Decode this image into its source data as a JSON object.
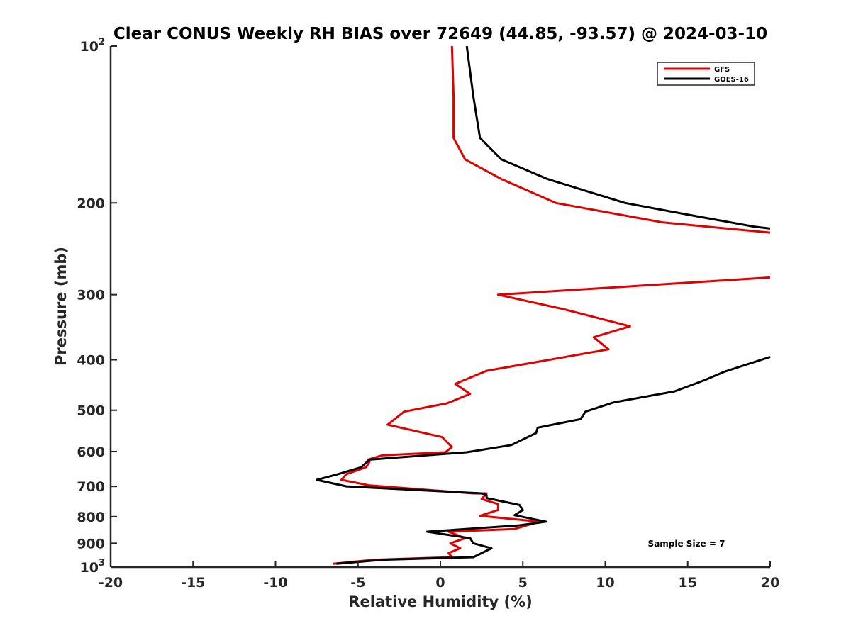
{
  "chart_data": {
    "type": "line",
    "title": "Clear CONUS Weekly RH BIAS over 72649 (44.85, -93.57) @ 2024-03-10",
    "xlabel": "Relative Humidity (%)",
    "ylabel": "Pressure (mb)",
    "xlim": [
      -20,
      20
    ],
    "ylim": [
      100,
      1000
    ],
    "y_scale": "log",
    "y_reversed": true,
    "x_ticks": [
      "-20",
      "-15",
      "-10",
      "-5",
      "0",
      "5",
      "10",
      "15",
      "20"
    ],
    "y_ticks": [
      {
        "value": 100,
        "base": "10",
        "exp": "2"
      },
      {
        "value": 200,
        "label": "200"
      },
      {
        "value": 300,
        "label": "300"
      },
      {
        "value": 400,
        "label": "400"
      },
      {
        "value": 500,
        "label": "500"
      },
      {
        "value": 600,
        "label": "600"
      },
      {
        "value": 700,
        "label": "700"
      },
      {
        "value": 800,
        "label": "800"
      },
      {
        "value": 900,
        "label": "900"
      },
      {
        "value": 1000,
        "base": "10",
        "exp": "3"
      }
    ],
    "grid": false,
    "legend_position": "top-right",
    "annotation": "Sample Size = 7",
    "series": [
      {
        "name": "GFS",
        "color": "#e00000",
        "points": [
          {
            "x": 0.7,
            "p": 100
          },
          {
            "x": 0.8,
            "p": 125
          },
          {
            "x": 0.8,
            "p": 150
          },
          {
            "x": 1.5,
            "p": 165
          },
          {
            "x": 3.7,
            "p": 180
          },
          {
            "x": 7.0,
            "p": 200
          },
          {
            "x": 13.5,
            "p": 218
          },
          {
            "x": 20.0,
            "p": 228
          },
          {
            "x": null,
            "p": 270
          },
          {
            "x": 20.0,
            "p": 278
          },
          {
            "x": 3.5,
            "p": 300
          },
          {
            "x": 7.5,
            "p": 320
          },
          {
            "x": 11.5,
            "p": 345
          },
          {
            "x": 9.3,
            "p": 362
          },
          {
            "x": 10.2,
            "p": 382
          },
          {
            "x": 2.8,
            "p": 420
          },
          {
            "x": 0.9,
            "p": 445
          },
          {
            "x": 1.8,
            "p": 465
          },
          {
            "x": 0.4,
            "p": 485
          },
          {
            "x": -2.2,
            "p": 503
          },
          {
            "x": -3.2,
            "p": 533
          },
          {
            "x": 0.1,
            "p": 563
          },
          {
            "x": 0.7,
            "p": 588
          },
          {
            "x": 0.3,
            "p": 602
          },
          {
            "x": -3.5,
            "p": 610
          },
          {
            "x": -4.4,
            "p": 622
          },
          {
            "x": -4.3,
            "p": 628
          },
          {
            "x": -4.5,
            "p": 643
          },
          {
            "x": -5.7,
            "p": 663
          },
          {
            "x": -6.0,
            "p": 680
          },
          {
            "x": -4.3,
            "p": 697
          },
          {
            "x": 2.0,
            "p": 722
          },
          {
            "x": 2.8,
            "p": 722
          },
          {
            "x": 2.5,
            "p": 740
          },
          {
            "x": 3.5,
            "p": 757
          },
          {
            "x": 3.5,
            "p": 777
          },
          {
            "x": 2.4,
            "p": 797
          },
          {
            "x": 6.0,
            "p": 818
          },
          {
            "x": 4.5,
            "p": 845
          },
          {
            "x": 0.5,
            "p": 855
          },
          {
            "x": 1.5,
            "p": 880
          },
          {
            "x": 0.6,
            "p": 900
          },
          {
            "x": 1.2,
            "p": 920
          },
          {
            "x": 0.5,
            "p": 940
          },
          {
            "x": 0.7,
            "p": 957
          },
          {
            "x": -4.0,
            "p": 968
          },
          {
            "x": -6.5,
            "p": 985
          }
        ]
      },
      {
        "name": "GOES-16",
        "color": "#000000",
        "points": [
          {
            "x": 1.6,
            "p": 100
          },
          {
            "x": 2.0,
            "p": 125
          },
          {
            "x": 2.4,
            "p": 150
          },
          {
            "x": 3.7,
            "p": 165
          },
          {
            "x": 6.5,
            "p": 180
          },
          {
            "x": 11.2,
            "p": 200
          },
          {
            "x": 15.5,
            "p": 212
          },
          {
            "x": 19.0,
            "p": 222
          },
          {
            "x": 20.0,
            "p": 224
          },
          {
            "x": null,
            "p": 390
          },
          {
            "x": 20.0,
            "p": 395
          },
          {
            "x": 17.2,
            "p": 422
          },
          {
            "x": 16.0,
            "p": 438
          },
          {
            "x": 14.2,
            "p": 460
          },
          {
            "x": 10.5,
            "p": 483
          },
          {
            "x": 8.8,
            "p": 503
          },
          {
            "x": 8.5,
            "p": 520
          },
          {
            "x": 5.9,
            "p": 540
          },
          {
            "x": 5.8,
            "p": 553
          },
          {
            "x": 4.3,
            "p": 583
          },
          {
            "x": 1.6,
            "p": 602
          },
          {
            "x": -4.3,
            "p": 622
          },
          {
            "x": -4.8,
            "p": 643
          },
          {
            "x": -6.2,
            "p": 663
          },
          {
            "x": -7.5,
            "p": 680
          },
          {
            "x": -5.7,
            "p": 700
          },
          {
            "x": 2.5,
            "p": 722
          },
          {
            "x": 2.8,
            "p": 727
          },
          {
            "x": 2.8,
            "p": 737
          },
          {
            "x": 4.8,
            "p": 760
          },
          {
            "x": 5.0,
            "p": 777
          },
          {
            "x": 4.5,
            "p": 795
          },
          {
            "x": 6.4,
            "p": 818
          },
          {
            "x": 4.7,
            "p": 832
          },
          {
            "x": -0.8,
            "p": 855
          },
          {
            "x": 1.8,
            "p": 880
          },
          {
            "x": 2.0,
            "p": 900
          },
          {
            "x": 3.1,
            "p": 920
          },
          {
            "x": 2.0,
            "p": 957
          },
          {
            "x": -3.5,
            "p": 968
          },
          {
            "x": -6.3,
            "p": 985
          }
        ]
      }
    ]
  }
}
